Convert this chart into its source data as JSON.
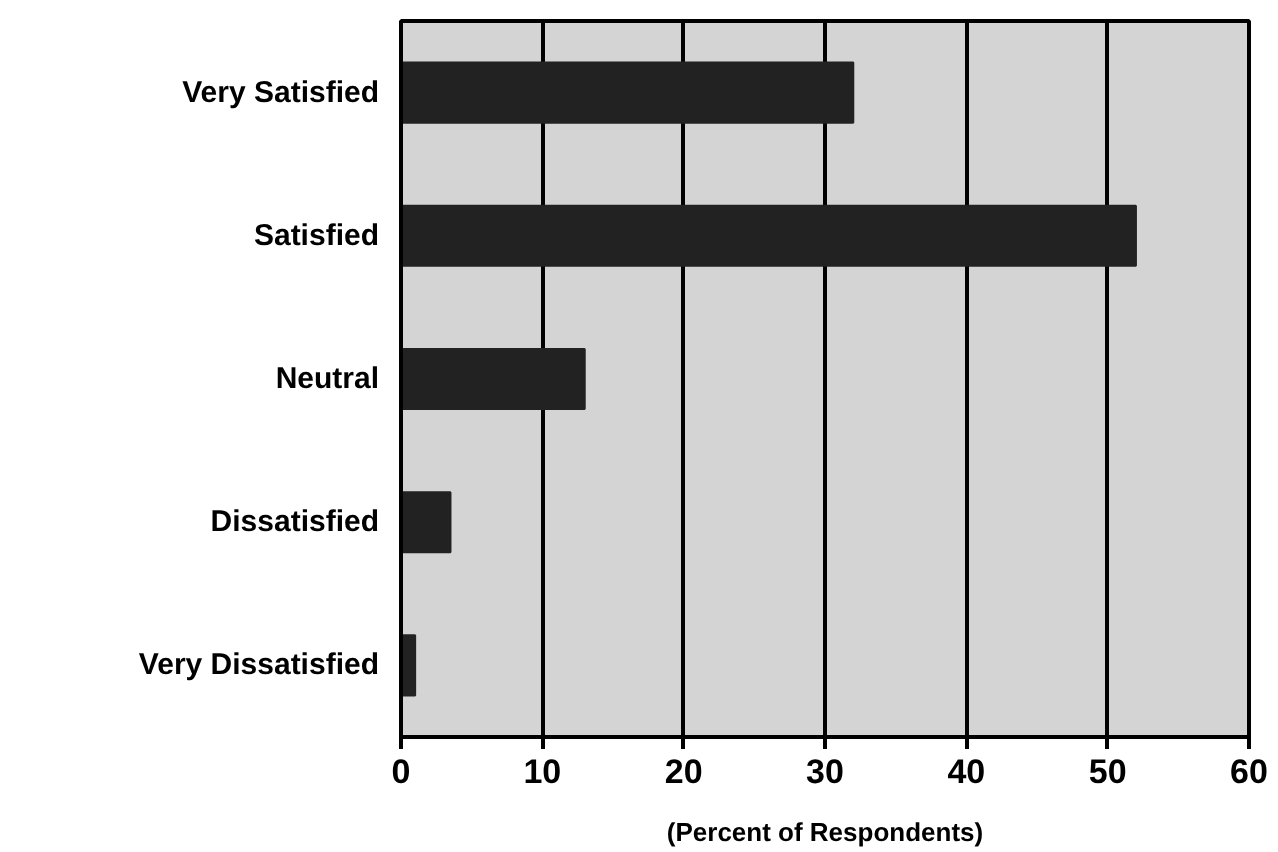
{
  "chart_data": {
    "type": "bar",
    "orientation": "horizontal",
    "xlabel": "(Percent of Respondents)",
    "categories": [
      "Very Satisfied",
      "Satisfied",
      "Neutral",
      "Dissatisfied",
      "Very Dissatisfied"
    ],
    "values": [
      32,
      52,
      13,
      3.5,
      1
    ],
    "color": "#222222",
    "xlim": [
      0,
      60
    ],
    "xticks": [
      0,
      10,
      20,
      30,
      40,
      50,
      60
    ],
    "grid": "x"
  }
}
